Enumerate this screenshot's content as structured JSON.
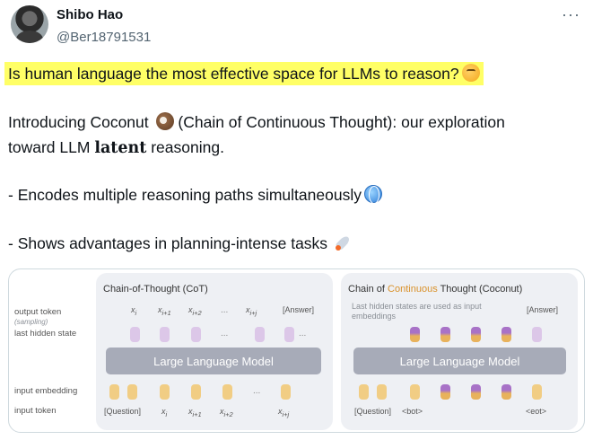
{
  "author": {
    "name": "Shibo Hao",
    "handle": "@Ber18791531"
  },
  "menu": {
    "more_icon": "···"
  },
  "tweet": {
    "headline": "Is human language the most effective space for LLMs to reason?",
    "intro_1": "Introducing Coconut",
    "intro_2": "(Chain of Continuous Thought): our exploration",
    "intro_3": "toward LLM",
    "intro_bold": "latent",
    "intro_4": "reasoning.",
    "bullet_1": "- Encodes multiple reasoning paths simultaneously",
    "bullet_2": "- Shows advantages in planning-intense tasks"
  },
  "figure": {
    "row_labels": {
      "output_token": "output token",
      "sampling": "(sampling)",
      "last_hidden": "last hidden state",
      "input_embedding": "input embedding",
      "input_token": "input token"
    },
    "cot": {
      "title": "Chain-of-Thought (CoT)",
      "llm": "Large Language Model",
      "outputs": [
        "x",
        "x",
        "x",
        "x",
        "[Answer]"
      ],
      "output_subs": [
        "i",
        "i+1",
        "i+2",
        "i+j",
        ""
      ],
      "inputs": [
        "[Question]",
        "x",
        "x",
        "x",
        "x"
      ],
      "input_subs": [
        "",
        "i",
        "i+1",
        "i+2",
        "i+j"
      ],
      "dots": "..."
    },
    "coconut": {
      "title_a": "Chain of",
      "title_b": "Continuous",
      "title_c": "Thought (Coconut)",
      "note": "Last hidden states are used as input embeddings",
      "llm": "Large Language Model",
      "answer": "[Answer]",
      "inputs": [
        "[Question]",
        "<bot>",
        "<eot>"
      ],
      "dots": "..."
    }
  }
}
